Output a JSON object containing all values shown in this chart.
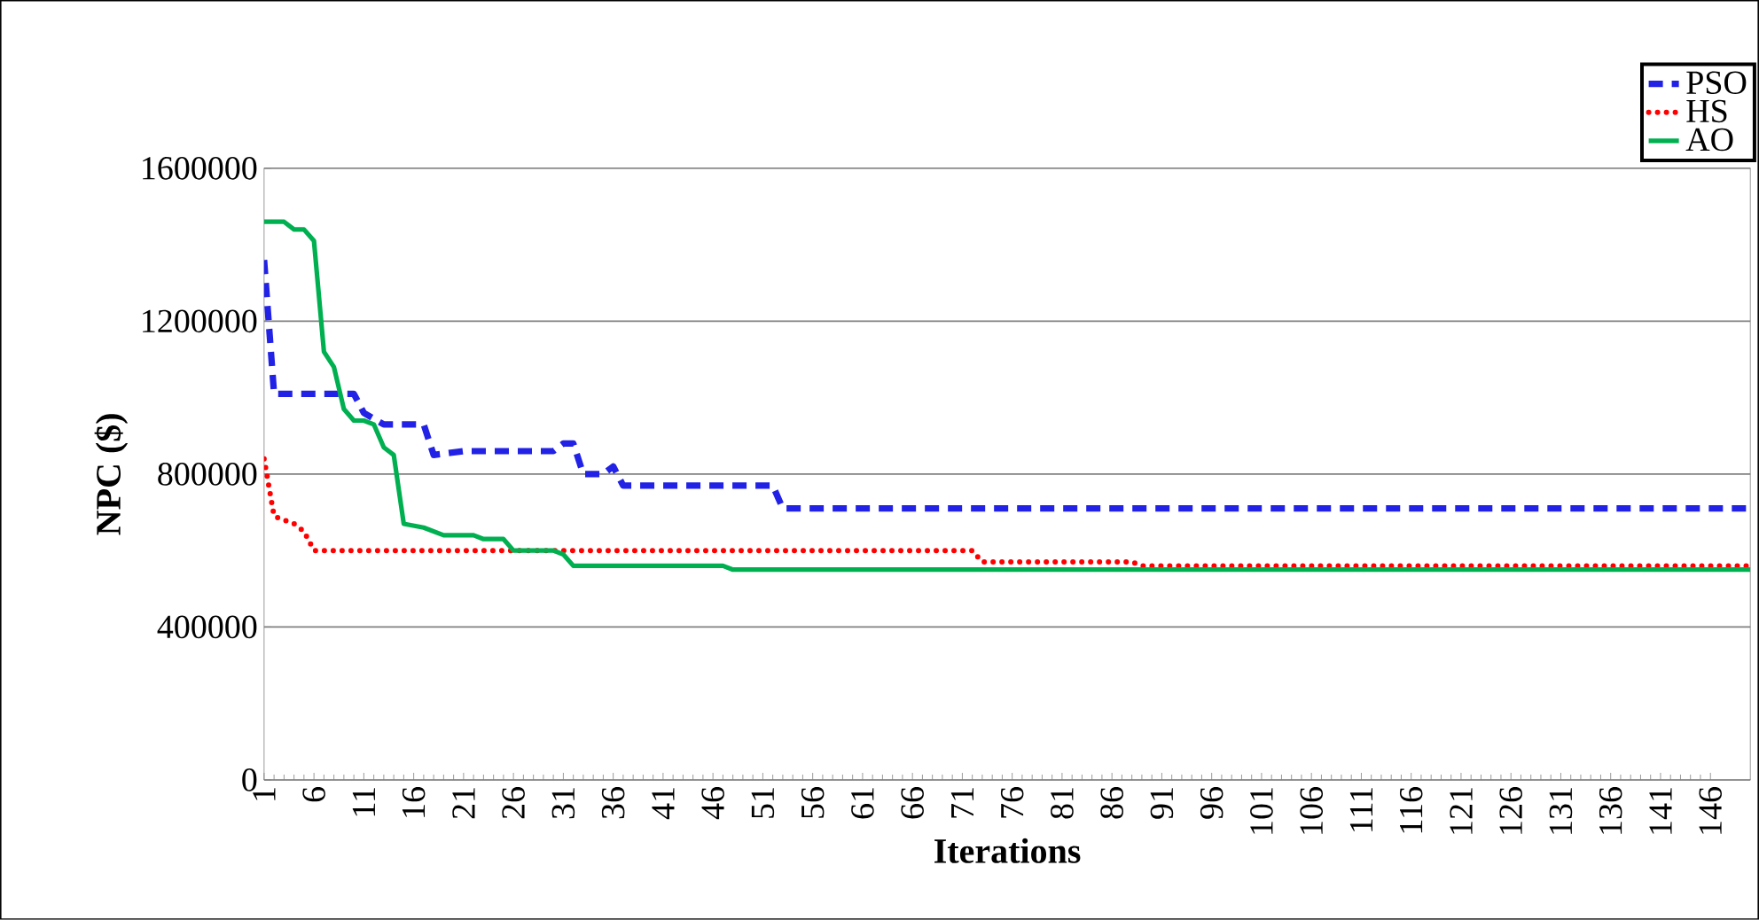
{
  "chart_data": {
    "type": "line",
    "xlabel": "Iterations",
    "ylabel": "NPC ($)",
    "xlim": [
      1,
      150
    ],
    "xticks": [
      1,
      6,
      11,
      16,
      21,
      26,
      31,
      36,
      41,
      46,
      51,
      56,
      61,
      66,
      71,
      76,
      81,
      86,
      91,
      96,
      101,
      106,
      111,
      116,
      121,
      126,
      131,
      136,
      141,
      146
    ],
    "ylim": [
      0,
      1600000
    ],
    "yticks": [
      0,
      400000,
      800000,
      1200000,
      1600000
    ],
    "grid": "y",
    "legend": "top right",
    "series": [
      {
        "name": "PSO",
        "color": "#2222e6",
        "line_style": "dashed",
        "x": [
          1,
          2,
          10,
          11,
          13,
          17,
          18,
          21,
          30,
          31,
          32,
          33,
          35,
          36,
          37,
          52,
          53,
          150
        ],
        "values": [
          1360000,
          1010000,
          1010000,
          960000,
          930000,
          930000,
          850000,
          860000,
          860000,
          880000,
          880000,
          800000,
          800000,
          820000,
          770000,
          770000,
          710000,
          710000
        ]
      },
      {
        "name": "HS",
        "color": "#ff0000",
        "line_style": "dotted",
        "x": [
          1,
          2,
          4,
          5,
          6,
          72,
          73,
          88,
          89,
          150
        ],
        "values": [
          840000,
          690000,
          670000,
          650000,
          600000,
          600000,
          570000,
          570000,
          560000,
          560000
        ]
      },
      {
        "name": "AO",
        "color": "#00b050",
        "line_style": "solid",
        "x": [
          1,
          3,
          4,
          5,
          6,
          7,
          8,
          9,
          10,
          11,
          12,
          13,
          14,
          15,
          17,
          18,
          19,
          22,
          23,
          25,
          26,
          30,
          31,
          32,
          47,
          48,
          150
        ],
        "values": [
          1460000,
          1460000,
          1440000,
          1440000,
          1410000,
          1120000,
          1080000,
          970000,
          940000,
          940000,
          930000,
          870000,
          850000,
          670000,
          660000,
          650000,
          640000,
          640000,
          630000,
          630000,
          600000,
          600000,
          590000,
          560000,
          560000,
          550000,
          550000
        ]
      }
    ]
  }
}
